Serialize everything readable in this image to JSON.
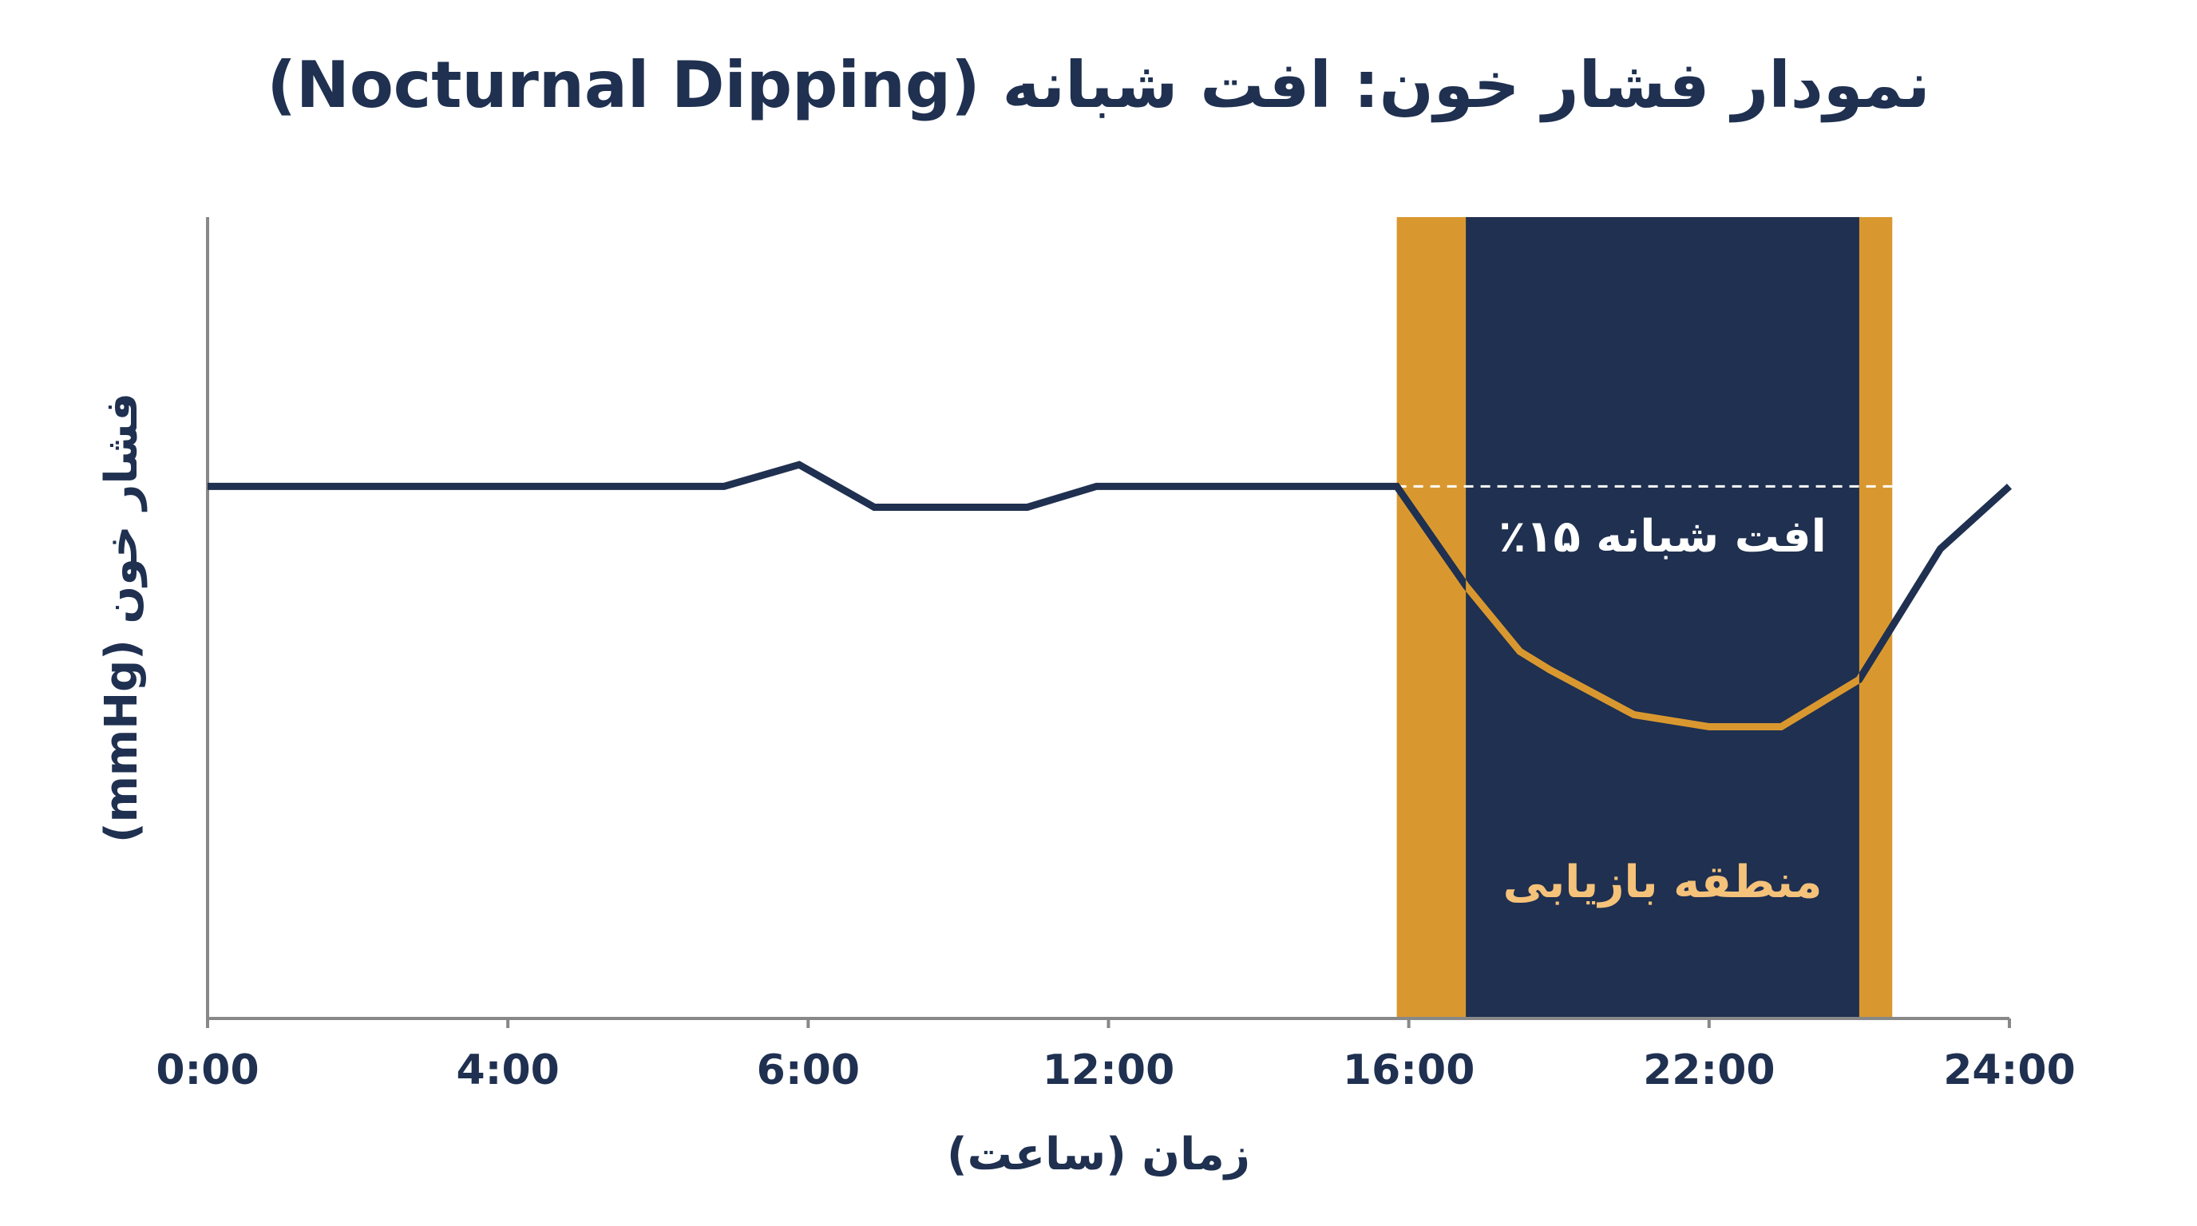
{
  "chart_data": {
    "type": "line",
    "title": "نمودار فشار خون: افت شبانه (Nocturnal Dipping)",
    "xlabel": "زمان (ساعت)",
    "ylabel": "فشار خون (mmHg)",
    "x": [
      0,
      1.72,
      1.97,
      2.22,
      2.73,
      2.96,
      3.96,
      4.19,
      4.37,
      4.47,
      4.75,
      5.0,
      5.24,
      5.5,
      5.77,
      6.0
    ],
    "values": [
      66.4,
      66.4,
      69.1,
      63.8,
      63.8,
      66.4,
      66.4,
      54.0,
      45.8,
      43.5,
      37.9,
      36.4,
      36.4,
      42.3,
      58.6,
      66.4
    ],
    "color": "#1f3050",
    "highlight_color": "#d9982f",
    "xlim": [
      0,
      6
    ],
    "xticks": [
      {
        "value": 0,
        "label": "0:00"
      },
      {
        "value": 1,
        "label": "4:00"
      },
      {
        "value": 2,
        "label": "6:00"
      },
      {
        "value": 3,
        "label": "12:00"
      },
      {
        "value": 4,
        "label": "16:00"
      },
      {
        "value": 5,
        "label": "22:00"
      },
      {
        "value": 6,
        "label": "24:00"
      }
    ],
    "ylim": [
      0,
      100
    ],
    "bands": [
      {
        "x": [
          3.96,
          5.61
        ],
        "color": "#d9982f"
      },
      {
        "x": [
          4.19,
          5.5
        ],
        "color": "#1f3050"
      }
    ],
    "reference_line": {
      "value": 66.4,
      "x": [
        3.96,
        5.61
      ]
    },
    "annotations": [
      {
        "text": "افت شبانه ۱۵٪",
        "color": "#ffffff"
      },
      {
        "text": "منطقه بازیابی",
        "color": "#f5c27a"
      }
    ]
  }
}
